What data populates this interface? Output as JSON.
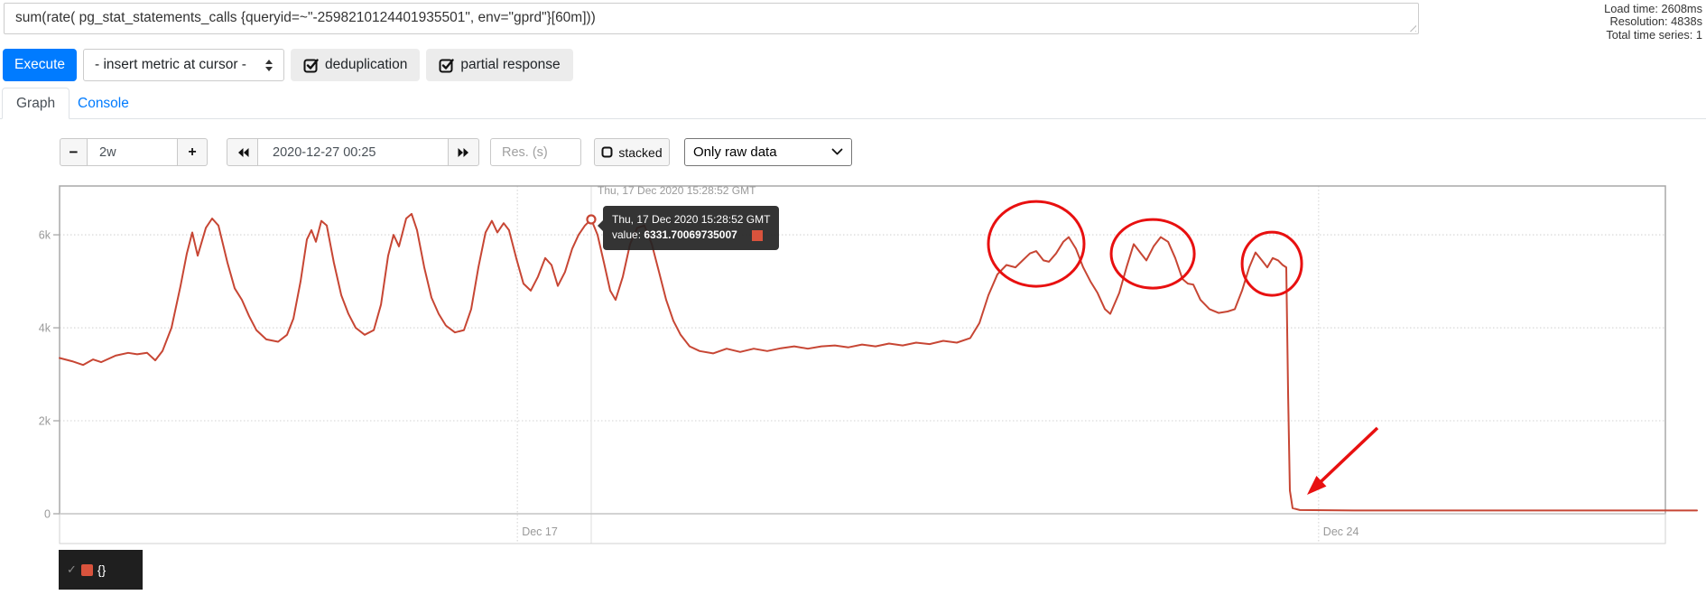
{
  "query_bar": {
    "query": "sum(rate( pg_stat_statements_calls {queryid=~\"-2598210124401935501\", env=\"gprd\"}[60m]))"
  },
  "stats": {
    "load_time": "Load time: 2608ms",
    "resolution": "Resolution: 4838s",
    "total_series": "Total time series: 1"
  },
  "toolbar": {
    "execute_label": "Execute",
    "insert_metric_label": "- insert metric at cursor -",
    "deduplication_label": "deduplication",
    "partial_response_label": "partial response"
  },
  "tabs": {
    "graph": "Graph",
    "console": "Console"
  },
  "controls": {
    "range_decrease": "−",
    "range_value": "2w",
    "range_increase": "+",
    "datetime_value": "2020-12-27 00:25",
    "res_placeholder": "Res. (s)",
    "stacked_label": "stacked",
    "raw_select_value": "Only raw data"
  },
  "crosshair": {
    "timestamp": "Thu, 17 Dec 2020 15:28:52 GMT"
  },
  "tooltip": {
    "timestamp": "Thu, 17 Dec 2020 15:28:52 GMT",
    "value_label": "value:",
    "value": "6331.70069735007",
    "swatch_color": "#d9533d"
  },
  "legend": {
    "check": "✓",
    "label": "{}",
    "swatch_color": "#d9533d"
  },
  "colors": {
    "series_line": "#c74634",
    "annotation_red": "#e81010",
    "grid_dotted": "#dcdcdc",
    "plot_border": "#a8a8a8",
    "axis_label": "#999999",
    "accent_blue": "#007bff"
  },
  "chart_data": {
    "type": "line",
    "title": "",
    "xlabel": "",
    "ylabel": "",
    "x_domain_days": [
      0,
      14.33
    ],
    "x_ticks": [
      {
        "day": 4,
        "label": "Dec 17"
      },
      {
        "day": 11,
        "label": "Dec 24"
      }
    ],
    "y_ticks": [
      {
        "value": 0,
        "label": "0"
      },
      {
        "value": 2000,
        "label": "2k"
      },
      {
        "value": 4000,
        "label": "4k"
      },
      {
        "value": 6000,
        "label": "6k"
      }
    ],
    "ylim": [
      0,
      7050
    ],
    "grid": true,
    "legend_position": "bottom-left",
    "series": [
      {
        "name": "{}",
        "points": [
          [
            0,
            3350
          ],
          [
            0.11,
            3280
          ],
          [
            0.205,
            3200
          ],
          [
            0.292,
            3320
          ],
          [
            0.363,
            3260
          ],
          [
            0.489,
            3400
          ],
          [
            0.599,
            3460
          ],
          [
            0.678,
            3430
          ],
          [
            0.765,
            3460
          ],
          [
            0.836,
            3300
          ],
          [
            0.899,
            3500
          ],
          [
            0.978,
            4000
          ],
          [
            1.057,
            4900
          ],
          [
            1.112,
            5600
          ],
          [
            1.159,
            6050
          ],
          [
            1.207,
            5550
          ],
          [
            1.278,
            6150
          ],
          [
            1.333,
            6350
          ],
          [
            1.388,
            6200
          ],
          [
            1.467,
            5400
          ],
          [
            1.53,
            4850
          ],
          [
            1.593,
            4600
          ],
          [
            1.656,
            4250
          ],
          [
            1.719,
            3950
          ],
          [
            1.806,
            3750
          ],
          [
            1.909,
            3700
          ],
          [
            1.987,
            3850
          ],
          [
            2.043,
            4200
          ],
          [
            2.106,
            5000
          ],
          [
            2.161,
            5900
          ],
          [
            2.2,
            6100
          ],
          [
            2.24,
            5850
          ],
          [
            2.287,
            6300
          ],
          [
            2.334,
            6200
          ],
          [
            2.397,
            5400
          ],
          [
            2.461,
            4700
          ],
          [
            2.524,
            4300
          ],
          [
            2.587,
            4000
          ],
          [
            2.666,
            3850
          ],
          [
            2.745,
            3950
          ],
          [
            2.808,
            4500
          ],
          [
            2.871,
            5550
          ],
          [
            2.918,
            6000
          ],
          [
            2.965,
            5750
          ],
          [
            3.028,
            6350
          ],
          [
            3.076,
            6450
          ],
          [
            3.123,
            6100
          ],
          [
            3.186,
            5300
          ],
          [
            3.249,
            4650
          ],
          [
            3.312,
            4300
          ],
          [
            3.375,
            4050
          ],
          [
            3.454,
            3900
          ],
          [
            3.533,
            3950
          ],
          [
            3.596,
            4400
          ],
          [
            3.659,
            5300
          ],
          [
            3.722,
            6050
          ],
          [
            3.777,
            6300
          ],
          [
            3.825,
            6050
          ],
          [
            3.88,
            6250
          ],
          [
            3.927,
            6100
          ],
          [
            3.99,
            5500
          ],
          [
            4.053,
            4950
          ],
          [
            4.117,
            4800
          ],
          [
            4.18,
            5100
          ],
          [
            4.243,
            5500
          ],
          [
            4.298,
            5350
          ],
          [
            4.353,
            4900
          ],
          [
            4.416,
            5200
          ],
          [
            4.479,
            5700
          ],
          [
            4.535,
            6000
          ],
          [
            4.59,
            6200
          ],
          [
            4.645,
            6331.70069735007
          ],
          [
            4.7,
            6000
          ],
          [
            4.756,
            5400
          ],
          [
            4.811,
            4800
          ],
          [
            4.858,
            4600
          ],
          [
            4.921,
            5100
          ],
          [
            4.984,
            5800
          ],
          [
            5.047,
            6150
          ],
          [
            5.11,
            6200
          ],
          [
            5.174,
            5800
          ],
          [
            5.237,
            5200
          ],
          [
            5.3,
            4600
          ],
          [
            5.363,
            4150
          ],
          [
            5.426,
            3850
          ],
          [
            5.505,
            3600
          ],
          [
            5.592,
            3500
          ],
          [
            5.71,
            3450
          ],
          [
            5.828,
            3550
          ],
          [
            5.946,
            3480
          ],
          [
            6.065,
            3550
          ],
          [
            6.183,
            3500
          ],
          [
            6.301,
            3560
          ],
          [
            6.419,
            3600
          ],
          [
            6.538,
            3550
          ],
          [
            6.656,
            3600
          ],
          [
            6.774,
            3620
          ],
          [
            6.893,
            3580
          ],
          [
            7.011,
            3640
          ],
          [
            7.129,
            3600
          ],
          [
            7.247,
            3660
          ],
          [
            7.366,
            3620
          ],
          [
            7.484,
            3680
          ],
          [
            7.602,
            3650
          ],
          [
            7.721,
            3720
          ],
          [
            7.839,
            3680
          ],
          [
            7.957,
            3780
          ],
          [
            8.036,
            4100
          ],
          [
            8.115,
            4700
          ],
          [
            8.194,
            5150
          ],
          [
            8.273,
            5350
          ],
          [
            8.352,
            5300
          ],
          [
            8.415,
            5450
          ],
          [
            8.478,
            5600
          ],
          [
            8.533,
            5650
          ],
          [
            8.596,
            5450
          ],
          [
            8.644,
            5420
          ],
          [
            8.707,
            5600
          ],
          [
            8.77,
            5850
          ],
          [
            8.817,
            5950
          ],
          [
            8.88,
            5700
          ],
          [
            8.943,
            5300
          ],
          [
            9.006,
            5000
          ],
          [
            9.069,
            4750
          ],
          [
            9.133,
            4400
          ],
          [
            9.18,
            4300
          ],
          [
            9.259,
            4750
          ],
          [
            9.322,
            5300
          ],
          [
            9.385,
            5800
          ],
          [
            9.448,
            5600
          ],
          [
            9.495,
            5450
          ],
          [
            9.558,
            5750
          ],
          [
            9.621,
            5950
          ],
          [
            9.685,
            5850
          ],
          [
            9.748,
            5500
          ],
          [
            9.811,
            5050
          ],
          [
            9.858,
            4950
          ],
          [
            9.905,
            4930
          ],
          [
            9.968,
            4600
          ],
          [
            10.047,
            4400
          ],
          [
            10.126,
            4320
          ],
          [
            10.205,
            4350
          ],
          [
            10.268,
            4400
          ],
          [
            10.331,
            4800
          ],
          [
            10.394,
            5300
          ],
          [
            10.449,
            5620
          ],
          [
            10.505,
            5450
          ],
          [
            10.552,
            5300
          ],
          [
            10.599,
            5500
          ],
          [
            10.647,
            5450
          ],
          [
            10.686,
            5350
          ],
          [
            10.718,
            5300
          ],
          [
            10.734,
            2500
          ],
          [
            10.749,
            500
          ],
          [
            10.773,
            120
          ],
          [
            10.836,
            80
          ],
          [
            11.309,
            70
          ],
          [
            12.098,
            70
          ],
          [
            12.887,
            70
          ],
          [
            13.675,
            70
          ],
          [
            14.306,
            70
          ]
        ]
      }
    ],
    "highlight_point": {
      "day": 4.645,
      "value": 6331.70069735007
    },
    "annotations": {
      "ellipses": [
        {
          "day": 8.533,
          "value": 5805,
          "rx_days": 0.418,
          "ry_value": 912
        },
        {
          "day": 9.551,
          "value": 5592,
          "rx_days": 0.363,
          "ry_value": 738
        },
        {
          "day": 10.592,
          "value": 5378,
          "rx_days": 0.26,
          "ry_value": 680
        }
      ],
      "arrow": {
        "from": {
          "day": 11.514,
          "value": 1845
        },
        "to": {
          "day": 10.899,
          "value": 408
        }
      }
    }
  }
}
